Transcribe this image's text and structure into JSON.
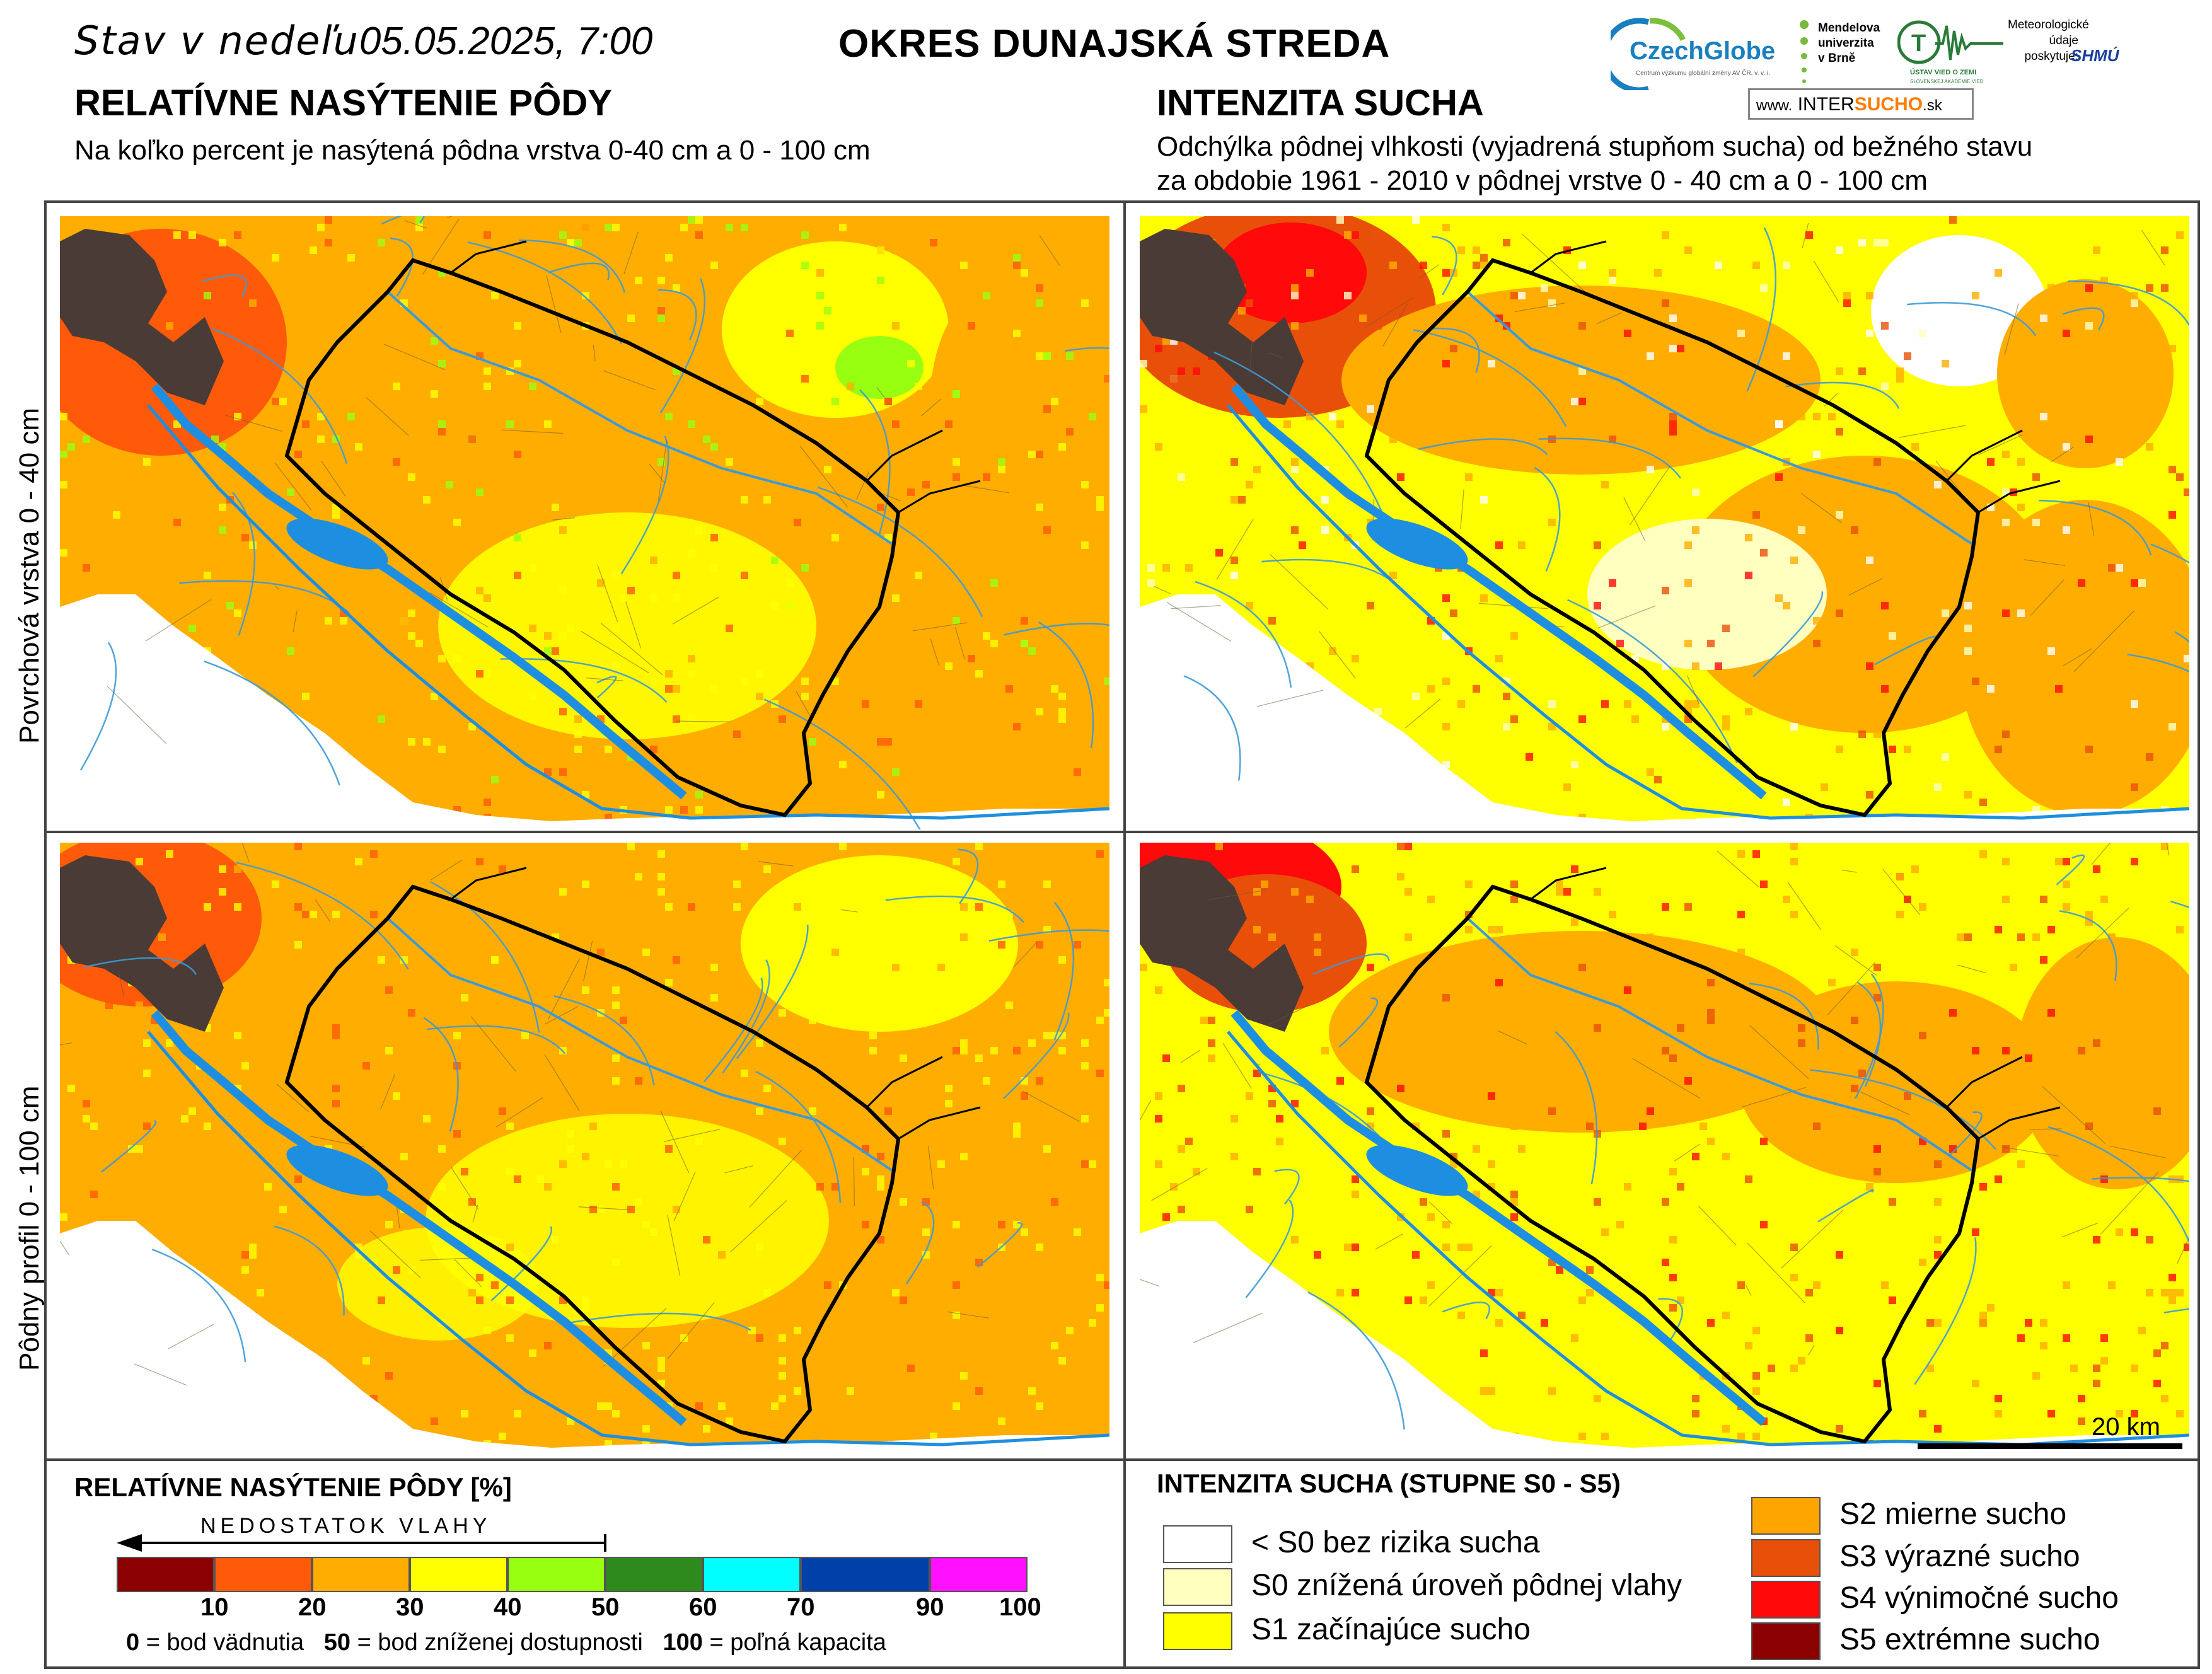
{
  "header": {
    "date_prefix": "Stav v nedeľu",
    "date_value": "05.05.2025, 7:00",
    "district": "OKRES  DUNAJSKÁ STREDA"
  },
  "left_section": {
    "title": "RELATÍVNE NASÝTENIE PÔDY",
    "subtitle": "Na koľko percent je nasýtená pôdna vrstva 0-40 cm a 0 - 100 cm"
  },
  "right_section": {
    "title": "INTENZITA SUCHA",
    "subtitle_line1": "Odchýlka pôdnej vlhkosti (vyjadrená stupňom sucha) od bežného stavu",
    "subtitle_line2": "za obdobie 1961 - 2010 v pôdnej vrstve 0 - 40 cm a 0 - 100 cm"
  },
  "logos": {
    "czechglobe": "CzechGlobe",
    "czechglobe_sub": "Centrum výzkumu globální změny AV ČR, v. v. i.",
    "mendel_1": "Mendelova",
    "mendel_2": "univerzita",
    "mendel_3": "v Brně",
    "uvz": "ÚSTAV VIED O ZEMI",
    "uvz_sub": "SLOVENSKEJ AKADÉMIE VIED",
    "meteo_1": "Meteorologické",
    "meteo_2": "údaje",
    "meteo_3": "poskytuje:",
    "shmu": "SHMÚ",
    "intersucho_www": "www.",
    "intersucho_a": "INTER",
    "intersucho_b": "SUCHO",
    "intersucho_c": ".sk"
  },
  "row_labels": {
    "top": "Povrchová vrstva 0 - 40 cm",
    "bottom": "Pôdny profil 0 - 100 cm"
  },
  "scale_bar": {
    "label": "20 km"
  },
  "saturation_legend": {
    "title": "RELATÍVNE NASÝTENIE PÔDY [%]",
    "arrow_label": "NEDOSTATOK VLAHY",
    "colors": [
      "#8b0000",
      "#ff5a0a",
      "#ffad00",
      "#ffff00",
      "#99ff11",
      "#2f8a1e",
      "#00ffff",
      "#0040a8",
      "#ff11ff"
    ],
    "ticks": [
      "10",
      "20",
      "30",
      "40",
      "50",
      "60",
      "70",
      "90",
      "100"
    ],
    "note_a_num": "0",
    "note_a_text": "= bod vädnutia",
    "note_b_num": "50",
    "note_b_text": "= bod zníženej dostupnosti",
    "note_c_num": "100",
    "note_c_text": "= poľná kapacita"
  },
  "drought_legend": {
    "title": "INTENZITA SUCHA (STUPNE S0 - S5)",
    "items": [
      {
        "label": "< S0 bez rizika sucha",
        "color": "#ffffff"
      },
      {
        "label": "S0 znížená úroveň pôdnej vlahy",
        "color": "#ffffc0"
      },
      {
        "label": "S1 začínajúce sucho",
        "color": "#ffff00"
      },
      {
        "label": "S2 mierne sucho",
        "color": "#ffa500"
      },
      {
        "label": "S3 výrazné sucho",
        "color": "#e8500a"
      },
      {
        "label": "S4 výnimočné sucho",
        "color": "#ff0a0a"
      },
      {
        "label": "S5 extrémne sucho",
        "color": "#8b0000"
      }
    ]
  }
}
